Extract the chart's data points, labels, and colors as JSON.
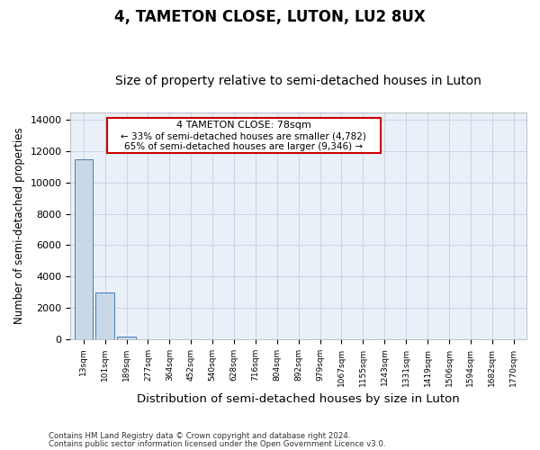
{
  "title": "4, TAMETON CLOSE, LUTON, LU2 8UX",
  "subtitle": "Size of property relative to semi-detached houses in Luton",
  "xlabel": "Distribution of semi-detached houses by size in Luton",
  "ylabel": "Number of semi-detached properties",
  "bar_categories": [
    "13sqm",
    "101sqm",
    "189sqm",
    "277sqm",
    "364sqm",
    "452sqm",
    "540sqm",
    "628sqm",
    "716sqm",
    "804sqm",
    "892sqm",
    "979sqm",
    "1067sqm",
    "1155sqm",
    "1243sqm",
    "1331sqm",
    "1419sqm",
    "1506sqm",
    "1594sqm",
    "1682sqm",
    "1770sqm"
  ],
  "bar_values": [
    11500,
    3000,
    150,
    0,
    0,
    0,
    0,
    0,
    0,
    0,
    0,
    0,
    0,
    0,
    0,
    0,
    0,
    0,
    0,
    0,
    0
  ],
  "bar_color": "#c8d8e8",
  "bar_edge_color": "#4a7ab5",
  "ylim": [
    0,
    14500
  ],
  "yticks": [
    0,
    2000,
    4000,
    6000,
    8000,
    10000,
    12000,
    14000
  ],
  "annotation_title": "4 TAMETON CLOSE: 78sqm",
  "annotation_line2": "← 33% of semi-detached houses are smaller (4,782)",
  "annotation_line3": "65% of semi-detached houses are larger (9,346) →",
  "annotation_box_color": "#ffffff",
  "annotation_border_color": "#cc0000",
  "grid_color": "#c8d8e8",
  "background_color": "#eaf0f8",
  "footer_line1": "Contains HM Land Registry data © Crown copyright and database right 2024.",
  "footer_line2": "Contains public sector information licensed under the Open Government Licence v3.0.",
  "title_fontsize": 12,
  "subtitle_fontsize": 10,
  "xlabel_fontsize": 9.5,
  "ylabel_fontsize": 8.5
}
